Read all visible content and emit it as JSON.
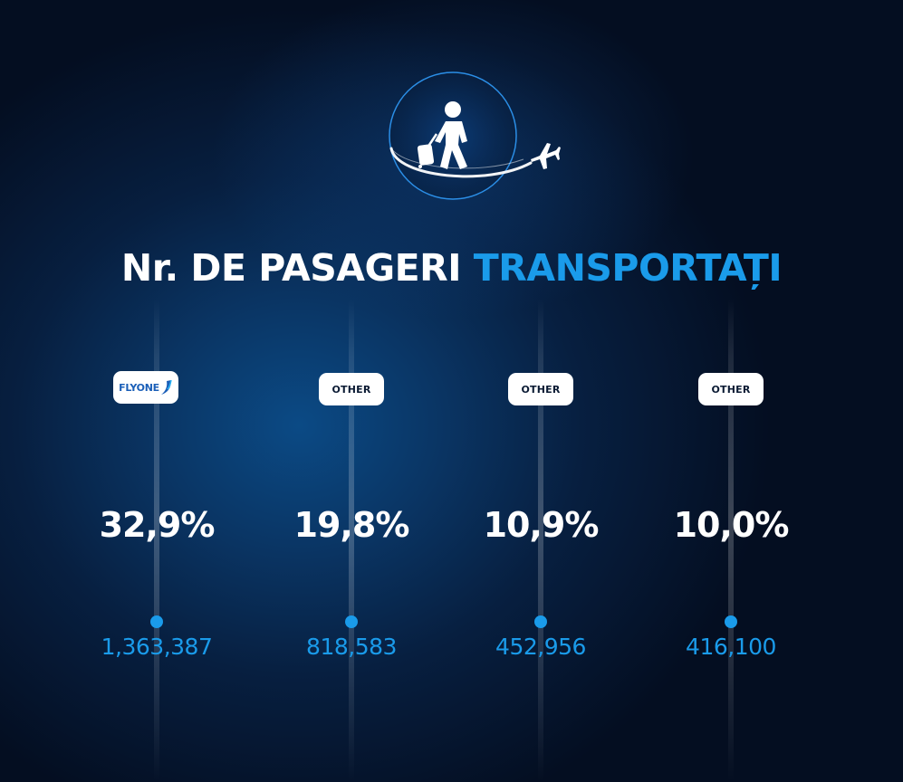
{
  "title": {
    "part1": "Nr. DE PASAGERI",
    "part2": "TRANSPORTAȚI"
  },
  "hero": {
    "icon": "traveler-with-luggage-icon",
    "plane_icon": "airplane-icon"
  },
  "columns": [
    {
      "badge": "FLYONE",
      "badge_type": "logo",
      "percent": "32,9%",
      "passengers": "1,363,387"
    },
    {
      "badge": "OTHER",
      "badge_type": "text",
      "percent": "19,8%",
      "passengers": "818,583"
    },
    {
      "badge": "OTHER",
      "badge_type": "text",
      "percent": "10,9%",
      "passengers": "452,956"
    },
    {
      "badge": "OTHER",
      "badge_type": "text",
      "percent": "10,0%",
      "passengers": "416,100"
    }
  ],
  "colors": {
    "accent": "#1a9bea",
    "background": "#071f40",
    "text": "#ffffff"
  }
}
